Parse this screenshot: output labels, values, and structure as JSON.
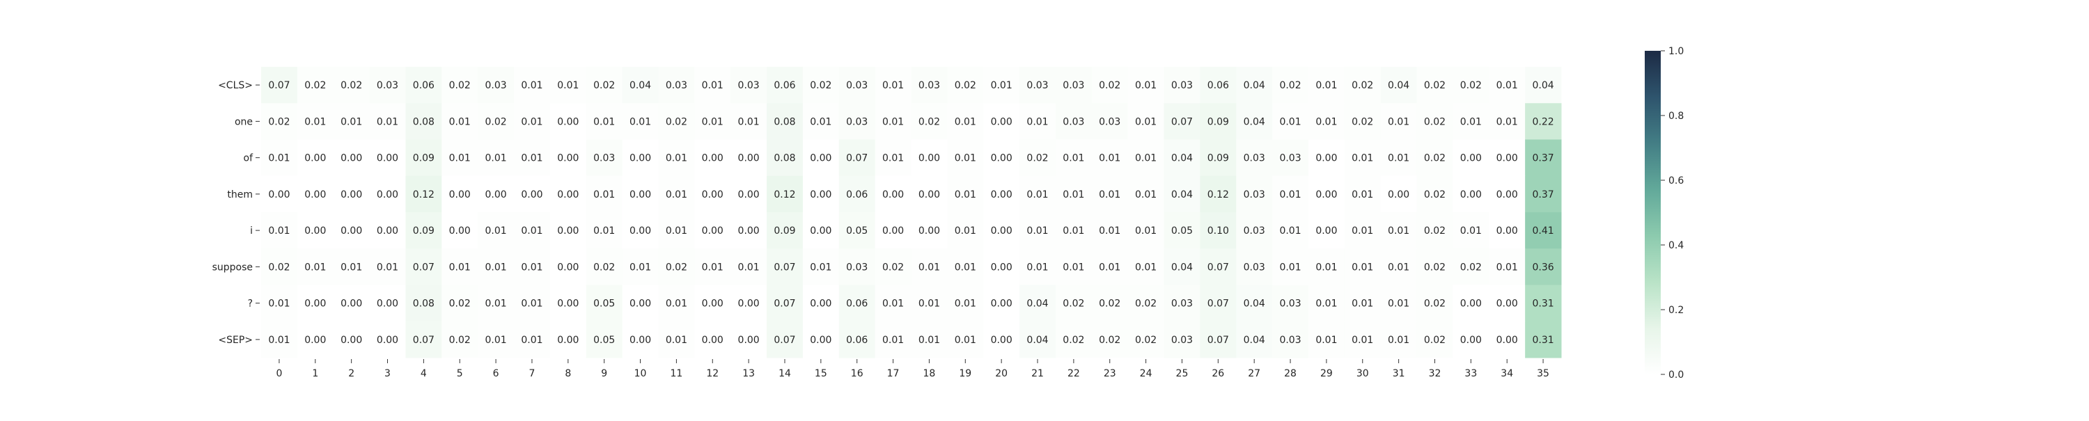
{
  "chart_data": {
    "type": "heatmap",
    "title": "",
    "xlabel": "",
    "ylabel": "",
    "rows": [
      "<CLS>",
      "one",
      "of",
      "them",
      "i",
      "suppose",
      "?",
      "<SEP>"
    ],
    "columns": [
      "0",
      "1",
      "2",
      "3",
      "4",
      "5",
      "6",
      "7",
      "8",
      "9",
      "10",
      "11",
      "12",
      "13",
      "14",
      "15",
      "16",
      "17",
      "18",
      "19",
      "20",
      "21",
      "22",
      "23",
      "24",
      "25",
      "26",
      "27",
      "28",
      "29",
      "30",
      "31",
      "32",
      "33",
      "34",
      "35"
    ],
    "values": [
      [
        0.07,
        0.02,
        0.02,
        0.03,
        0.06,
        0.02,
        0.03,
        0.01,
        0.01,
        0.02,
        0.04,
        0.03,
        0.01,
        0.03,
        0.06,
        0.02,
        0.03,
        0.01,
        0.03,
        0.02,
        0.01,
        0.03,
        0.03,
        0.02,
        0.01,
        0.03,
        0.06,
        0.04,
        0.02,
        0.01,
        0.02,
        0.04,
        0.02,
        0.02,
        0.01,
        0.04
      ],
      [
        0.02,
        0.01,
        0.01,
        0.01,
        0.08,
        0.01,
        0.02,
        0.01,
        0.0,
        0.01,
        0.01,
        0.02,
        0.01,
        0.01,
        0.08,
        0.01,
        0.03,
        0.01,
        0.02,
        0.01,
        0.0,
        0.01,
        0.03,
        0.03,
        0.01,
        0.07,
        0.09,
        0.04,
        0.01,
        0.01,
        0.02,
        0.01,
        0.02,
        0.01,
        0.01,
        0.22
      ],
      [
        0.01,
        0.0,
        0.0,
        0.0,
        0.09,
        0.01,
        0.01,
        0.01,
        0.0,
        0.03,
        0.0,
        0.01,
        0.0,
        0.0,
        0.08,
        0.0,
        0.07,
        0.01,
        0.0,
        0.01,
        0.0,
        0.02,
        0.01,
        0.01,
        0.01,
        0.04,
        0.09,
        0.03,
        0.03,
        0.0,
        0.01,
        0.01,
        0.02,
        0.0,
        0.0,
        0.37
      ],
      [
        0.0,
        0.0,
        0.0,
        0.0,
        0.12,
        0.0,
        0.0,
        0.0,
        0.0,
        0.01,
        0.0,
        0.01,
        0.0,
        0.0,
        0.12,
        0.0,
        0.06,
        0.0,
        0.0,
        0.01,
        0.0,
        0.01,
        0.01,
        0.01,
        0.01,
        0.04,
        0.12,
        0.03,
        0.01,
        0.0,
        0.01,
        0.0,
        0.02,
        0.0,
        0.0,
        0.37
      ],
      [
        0.01,
        0.0,
        0.0,
        0.0,
        0.09,
        0.0,
        0.01,
        0.01,
        0.0,
        0.01,
        0.0,
        0.01,
        0.0,
        0.0,
        0.09,
        0.0,
        0.05,
        0.0,
        0.0,
        0.01,
        0.0,
        0.01,
        0.01,
        0.01,
        0.01,
        0.05,
        0.1,
        0.03,
        0.01,
        0.0,
        0.01,
        0.01,
        0.02,
        0.01,
        0.0,
        0.41
      ],
      [
        0.02,
        0.01,
        0.01,
        0.01,
        0.07,
        0.01,
        0.01,
        0.01,
        0.0,
        0.02,
        0.01,
        0.02,
        0.01,
        0.01,
        0.07,
        0.01,
        0.03,
        0.02,
        0.01,
        0.01,
        0.0,
        0.01,
        0.01,
        0.01,
        0.01,
        0.04,
        0.07,
        0.03,
        0.01,
        0.01,
        0.01,
        0.01,
        0.02,
        0.02,
        0.01,
        0.36
      ],
      [
        0.01,
        0.0,
        0.0,
        0.0,
        0.08,
        0.02,
        0.01,
        0.01,
        0.0,
        0.05,
        0.0,
        0.01,
        0.0,
        0.0,
        0.07,
        0.0,
        0.06,
        0.01,
        0.01,
        0.01,
        0.0,
        0.04,
        0.02,
        0.02,
        0.02,
        0.03,
        0.07,
        0.04,
        0.03,
        0.01,
        0.01,
        0.01,
        0.02,
        0.0,
        0.0,
        0.31
      ],
      [
        0.01,
        0.0,
        0.0,
        0.0,
        0.07,
        0.02,
        0.01,
        0.01,
        0.0,
        0.05,
        0.0,
        0.01,
        0.0,
        0.0,
        0.07,
        0.0,
        0.06,
        0.01,
        0.01,
        0.01,
        0.0,
        0.04,
        0.02,
        0.02,
        0.02,
        0.03,
        0.07,
        0.04,
        0.03,
        0.01,
        0.01,
        0.01,
        0.02,
        0.0,
        0.0,
        0.31
      ]
    ],
    "value_range": [
      0.0,
      1.0
    ],
    "colorbar_ticks": [
      "0.0",
      "0.2",
      "0.4",
      "0.6",
      "0.8",
      "1.0"
    ],
    "colormap": [
      "#ffffff",
      "#e7f5e9",
      "#b9e3c7",
      "#8ccaae",
      "#62a99a",
      "#437e85",
      "#2e546d",
      "#1d2b45"
    ],
    "grid": false,
    "annotations": true
  }
}
